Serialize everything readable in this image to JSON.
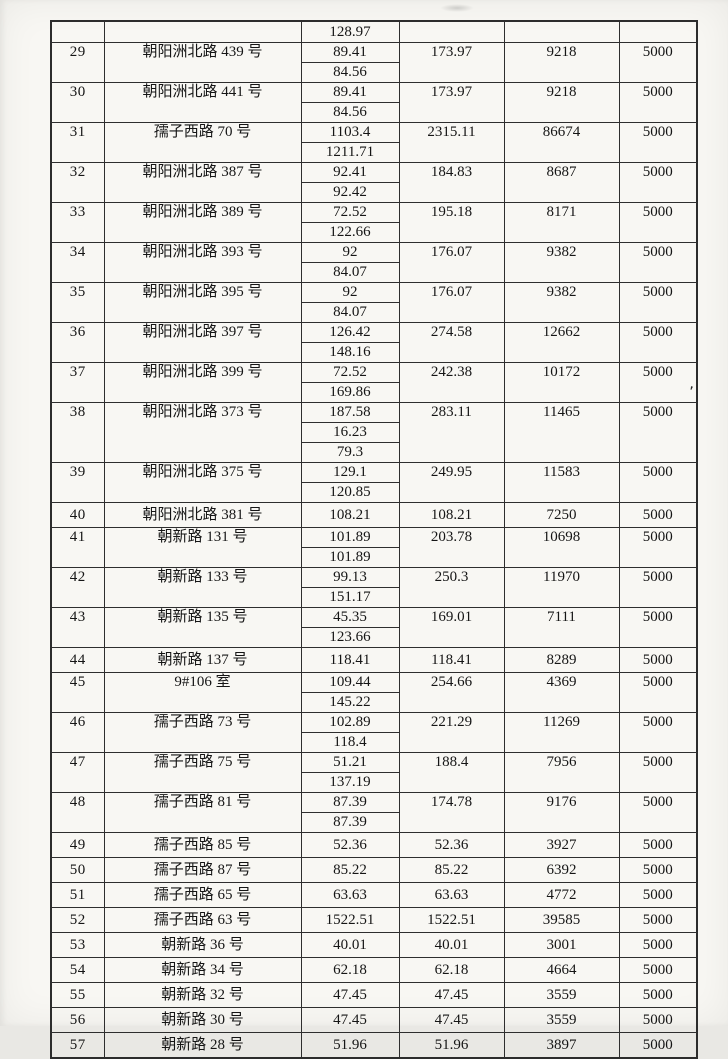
{
  "colors": {
    "paper": "#f8f7f3",
    "ink": "#151515",
    "line": "#2e2e2e"
  },
  "artifacts": {
    "ink_mark": "'"
  },
  "table": {
    "rows": [
      {
        "no": "",
        "address": "",
        "values": [
          "128.97"
        ],
        "total": "",
        "count": "",
        "fee": "",
        "carryover": true
      },
      {
        "no": "29",
        "address": "朝阳洲北路 439 号",
        "values": [
          "89.41",
          "84.56"
        ],
        "total": "173.97",
        "count": "9218",
        "fee": "5000"
      },
      {
        "no": "30",
        "address": "朝阳洲北路 441 号",
        "values": [
          "89.41",
          "84.56"
        ],
        "total": "173.97",
        "count": "9218",
        "fee": "5000"
      },
      {
        "no": "31",
        "address": "孺子西路 70 号",
        "values": [
          "1103.4",
          "1211.71"
        ],
        "total": "2315.11",
        "count": "86674",
        "fee": "5000"
      },
      {
        "no": "32",
        "address": "朝阳洲北路 387 号",
        "values": [
          "92.41",
          "92.42"
        ],
        "total": "184.83",
        "count": "8687",
        "fee": "5000"
      },
      {
        "no": "33",
        "address": "朝阳洲北路 389 号",
        "values": [
          "72.52",
          "122.66"
        ],
        "total": "195.18",
        "count": "8171",
        "fee": "5000"
      },
      {
        "no": "34",
        "address": "朝阳洲北路 393 号",
        "values": [
          "92",
          "84.07"
        ],
        "total": "176.07",
        "count": "9382",
        "fee": "5000"
      },
      {
        "no": "35",
        "address": "朝阳洲北路 395 号",
        "values": [
          "92",
          "84.07"
        ],
        "total": "176.07",
        "count": "9382",
        "fee": "5000"
      },
      {
        "no": "36",
        "address": "朝阳洲北路 397 号",
        "values": [
          "126.42",
          "148.16"
        ],
        "total": "274.58",
        "count": "12662",
        "fee": "5000"
      },
      {
        "no": "37",
        "address": "朝阳洲北路 399 号",
        "values": [
          "72.52",
          "169.86"
        ],
        "total": "242.38",
        "count": "10172",
        "fee": "5000"
      },
      {
        "no": "38",
        "address": "朝阳洲北路 373 号",
        "values": [
          "187.58",
          "16.23",
          "79.3"
        ],
        "total": "283.11",
        "count": "11465",
        "fee": "5000"
      },
      {
        "no": "39",
        "address": "朝阳洲北路 375 号",
        "values": [
          "129.1",
          "120.85"
        ],
        "total": "249.95",
        "count": "11583",
        "fee": "5000"
      },
      {
        "no": "40",
        "address": "朝阳洲北路 381 号",
        "values": [
          "108.21"
        ],
        "total": "108.21",
        "count": "7250",
        "fee": "5000"
      },
      {
        "no": "41",
        "address": "朝新路 131 号",
        "values": [
          "101.89",
          "101.89"
        ],
        "total": "203.78",
        "count": "10698",
        "fee": "5000"
      },
      {
        "no": "42",
        "address": "朝新路 133 号",
        "values": [
          "99.13",
          "151.17"
        ],
        "total": "250.3",
        "count": "11970",
        "fee": "5000"
      },
      {
        "no": "43",
        "address": "朝新路 135 号",
        "values": [
          "45.35",
          "123.66"
        ],
        "total": "169.01",
        "count": "7111",
        "fee": "5000"
      },
      {
        "no": "44",
        "address": "朝新路 137 号",
        "values": [
          "118.41"
        ],
        "total": "118.41",
        "count": "8289",
        "fee": "5000"
      },
      {
        "no": "45",
        "address": "9#106 室",
        "values": [
          "109.44",
          "145.22"
        ],
        "total": "254.66",
        "count": "4369",
        "fee": "5000"
      },
      {
        "no": "46",
        "address": "孺子西路 73 号",
        "values": [
          "102.89",
          "118.4"
        ],
        "total": "221.29",
        "count": "11269",
        "fee": "5000"
      },
      {
        "no": "47",
        "address": "孺子西路 75 号",
        "values": [
          "51.21",
          "137.19"
        ],
        "total": "188.4",
        "count": "7956",
        "fee": "5000"
      },
      {
        "no": "48",
        "address": "孺子西路 81 号",
        "values": [
          "87.39",
          "87.39"
        ],
        "total": "174.78",
        "count": "9176",
        "fee": "5000"
      },
      {
        "no": "49",
        "address": "孺子西路 85 号",
        "values": [
          "52.36"
        ],
        "total": "52.36",
        "count": "3927",
        "fee": "5000"
      },
      {
        "no": "50",
        "address": "孺子西路 87 号",
        "values": [
          "85.22"
        ],
        "total": "85.22",
        "count": "6392",
        "fee": "5000"
      },
      {
        "no": "51",
        "address": "孺子西路 65 号",
        "values": [
          "63.63"
        ],
        "total": "63.63",
        "count": "4772",
        "fee": "5000"
      },
      {
        "no": "52",
        "address": "孺子西路 63 号",
        "values": [
          "1522.51"
        ],
        "total": "1522.51",
        "count": "39585",
        "fee": "5000"
      },
      {
        "no": "53",
        "address": "朝新路 36 号",
        "values": [
          "40.01"
        ],
        "total": "40.01",
        "count": "3001",
        "fee": "5000"
      },
      {
        "no": "54",
        "address": "朝新路 34 号",
        "values": [
          "62.18"
        ],
        "total": "62.18",
        "count": "4664",
        "fee": "5000"
      },
      {
        "no": "55",
        "address": "朝新路 32 号",
        "values": [
          "47.45"
        ],
        "total": "47.45",
        "count": "3559",
        "fee": "5000"
      },
      {
        "no": "56",
        "address": "朝新路 30 号",
        "values": [
          "47.45"
        ],
        "total": "47.45",
        "count": "3559",
        "fee": "5000"
      },
      {
        "no": "57",
        "address": "朝新路 28 号",
        "values": [
          "51.96"
        ],
        "total": "51.96",
        "count": "3897",
        "fee": "5000"
      }
    ]
  }
}
